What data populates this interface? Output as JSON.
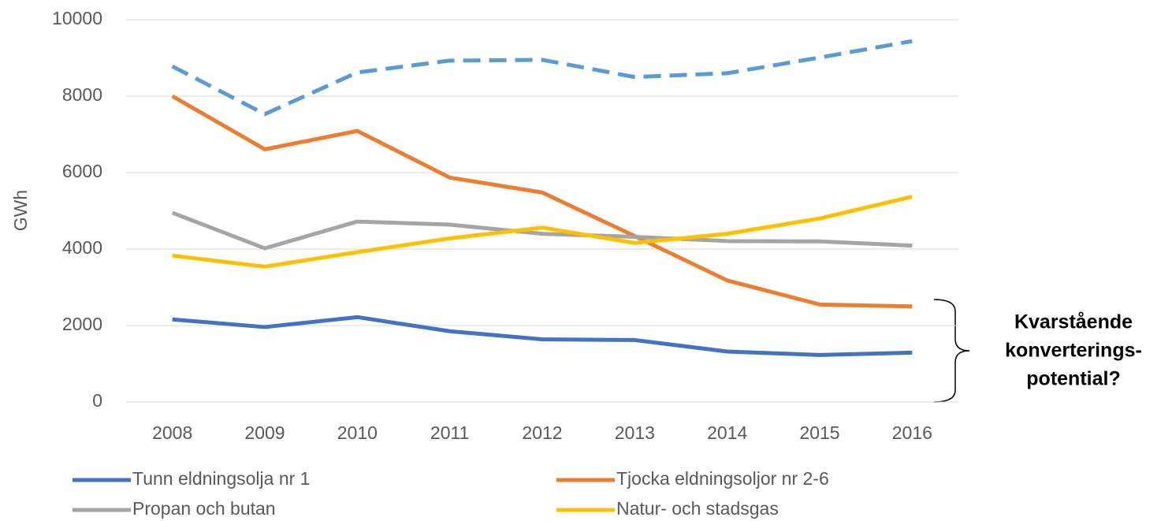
{
  "chart_data": {
    "type": "line",
    "y_label": "GWh",
    "categories": [
      "2008",
      "2009",
      "2010",
      "2011",
      "2012",
      "2013",
      "2014",
      "2015",
      "2016"
    ],
    "series": [
      {
        "color": "#5b9bd5",
        "dashed": true,
        "values": [
          8780,
          7530,
          8620,
          8930,
          8950,
          8500,
          8600,
          9010,
          9440
        ]
      },
      {
        "name": "Tunn eldningsolja nr 1",
        "color": "#4472c4",
        "values": [
          2160,
          1960,
          2220,
          1850,
          1640,
          1620,
          1320,
          1230,
          1290
        ]
      },
      {
        "name": "Tjocka eldningsoljor nr 2-6",
        "color": "#ed7d31",
        "values": [
          8000,
          6610,
          7090,
          5870,
          5480,
          4340,
          3180,
          2550,
          2500
        ]
      },
      {
        "name": "Propan och butan",
        "color": "#a5a5a5",
        "values": [
          4950,
          4020,
          4720,
          4640,
          4400,
          4320,
          4210,
          4200,
          4090
        ]
      },
      {
        "name": "Natur- och stadsgas",
        "color": "#ffc000",
        "values": [
          3830,
          3540,
          3920,
          4280,
          4560,
          4160,
          4400,
          4800,
          5370
        ]
      }
    ],
    "ylim": [
      0,
      10000
    ],
    "yticks": [
      0,
      2000,
      4000,
      6000,
      8000,
      10000
    ],
    "grid": true,
    "annotation": [
      "Kvarstående",
      "konverterings-",
      "potential?"
    ]
  }
}
